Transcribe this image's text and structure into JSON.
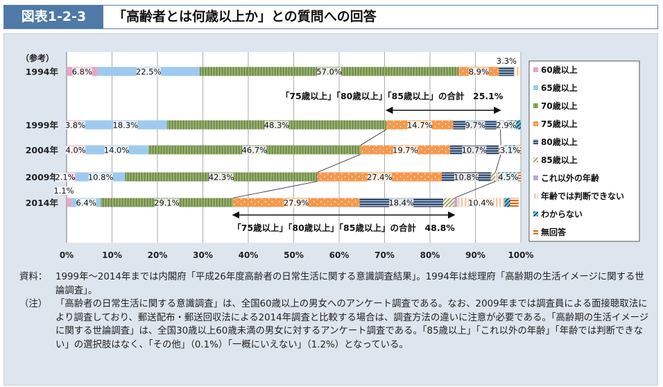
{
  "header": {
    "figure_no": "図表1-2-3",
    "title": "「高齢者とは何歳以上か」との質問への回答"
  },
  "chart_data": {
    "type": "bar",
    "stacked": true,
    "orientation": "horizontal",
    "title": "「高齢者とは何歳以上か」との質問への回答",
    "reference_label": "（参考）",
    "categories": [
      "1994年",
      "1999年",
      "2004年",
      "2009年",
      "2014年"
    ],
    "xlim": [
      0,
      100
    ],
    "xticks": [
      "0%",
      "10%",
      "20%",
      "30%",
      "40%",
      "50%",
      "60%",
      "70%",
      "80%",
      "90%",
      "100%"
    ],
    "series": [
      {
        "name": "60歳以上",
        "color": "#e7a6c5",
        "values": [
          6.8,
          3.8,
          4.0,
          2.1,
          1.1
        ]
      },
      {
        "name": "65歳以上",
        "color": "#9ecaef",
        "values": [
          22.5,
          18.3,
          14.0,
          10.8,
          6.4
        ]
      },
      {
        "name": "70歳以上",
        "color": "#8fb458",
        "values": [
          57.0,
          48.3,
          46.7,
          42.3,
          29.1
        ]
      },
      {
        "name": "75歳以上",
        "color": "#f39a4f",
        "values": [
          8.9,
          14.7,
          19.7,
          27.4,
          27.9
        ]
      },
      {
        "name": "80歳以上",
        "color": "#8fb0d6",
        "values": [
          3.3,
          9.7,
          10.7,
          10.8,
          18.4
        ]
      },
      {
        "name": "85歳以上",
        "color": "#a59a5a",
        "values": [
          0,
          0.7,
          0.5,
          1.0,
          2.5
        ]
      },
      {
        "name": "これ以外の年齢",
        "color": "#b9a7d6",
        "values": [
          0,
          0.8,
          0,
          0,
          0.6
        ]
      },
      {
        "name": "年齢では判断できない",
        "color": "#f8c7a4",
        "values": [
          1.5,
          0.8,
          0.5,
          0.6,
          10.4
        ]
      },
      {
        "name": "わからない",
        "color": "#6cc2e0",
        "values": [
          0,
          2.9,
          3.1,
          4.5,
          1.3
        ]
      },
      {
        "name": "無回答",
        "color": "#e8650f",
        "values": [
          0,
          0,
          0.8,
          0.5,
          1.8
        ]
      }
    ],
    "data_labels": [
      [
        "6.8%",
        "22.5%",
        "57.0%",
        "8.9%",
        "3.3%",
        null,
        null,
        null,
        null,
        null
      ],
      [
        "3.8%",
        "18.3%",
        "48.3%",
        "14.7%",
        "9.7%",
        null,
        null,
        null,
        "2.9%",
        null
      ],
      [
        "4.0%",
        "14.0%",
        "46.7%",
        "19.7%",
        "10.7%",
        null,
        null,
        null,
        "3.1%",
        null
      ],
      [
        "2.1%",
        "10.8%",
        "42.3%",
        "27.4%",
        "10.8%",
        null,
        null,
        null,
        "4.5%",
        null
      ],
      [
        "1.1%",
        "6.4%",
        "29.1%",
        "27.9%",
        "18.4%",
        null,
        null,
        "10.4%",
        null,
        null
      ]
    ],
    "annotations": [
      {
        "text": "「75歳以上」「80歳以上」「85歳以上」の合計　25.1%",
        "year": "1999年"
      },
      {
        "text": "「75歳以上」「80歳以上」「85歳以上」の合計　48.8%",
        "year": "2014年"
      }
    ],
    "legend_position": "right"
  },
  "notes": [
    {
      "key": "資料：",
      "text": "1999年～2014年までは内閣府「平成26年度高齢者の日常生活に関する意識調査結果」。1994年は総理府「高齢期の生活イメージに関する世論調査」。"
    },
    {
      "key": "（注）",
      "text": "「高齢者の日常生活に関する意識調査」は、全国60歳以上の男女へのアンケート調査である。なお、2009年までは調査員による面接聴取法により調査しており、郵送配布・郵送回収法による2014年調査と比較する場合は、調査方法の違いに注意が必要である。「高齢期の生活イメージに関する世論調査」は、全国30歳以上60歳未満の男女に対するアンケート調査である。「85歳以上」「これ以外の年齢」「年齢では判断できない」の選択肢はなく、「その他」（0.1%）「一概にいえない」（1.2%）となっている。"
    }
  ]
}
